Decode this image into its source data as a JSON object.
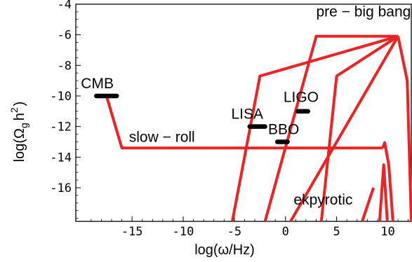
{
  "chart_data": {
    "type": "line",
    "title": "",
    "xlabel": "log(ω/Hz)",
    "ylabel_main": "log(Ω",
    "ylabel_sub": "g",
    "ylabel_rest": "h",
    "ylabel_sup": "2",
    "ylabel_close": ")",
    "xlim": [
      -20.5,
      12.3
    ],
    "ylim": [
      -18.2,
      -4.0
    ],
    "x_ticks": [
      -15,
      -10,
      -5,
      0,
      5,
      10
    ],
    "x_tick_labels": [
      "-15",
      "-10",
      "-5",
      "0",
      "5",
      "10"
    ],
    "y_ticks": [
      -4,
      -6,
      -8,
      -10,
      -12,
      -14,
      -16
    ],
    "y_tick_labels": [
      "-4",
      "-6",
      "-8",
      "-10",
      "-12",
      "-14",
      "-16"
    ],
    "grid": false,
    "line_color": "#ee2222",
    "marker_color": "#000000",
    "series": [
      {
        "name": "slow-roll",
        "x": [
          -17.5,
          -16,
          9.5
        ],
        "y": [
          -10.0,
          -13.4,
          -13.4
        ]
      },
      {
        "x": [
          9.5,
          9.7,
          10.1,
          10.5
        ],
        "y": [
          -13.4,
          -13.05,
          -14.5,
          -18.2
        ]
      },
      {
        "x": [
          9.2,
          9.6,
          9.95
        ],
        "y": [
          -18.2,
          -14.5,
          -18.2
        ]
      },
      {
        "name": "pre-big bang",
        "x": [
          -5.2,
          -2.5,
          11.0
        ],
        "y": [
          -18.2,
          -8.7,
          -6.1
        ]
      },
      {
        "x": [
          -2.0,
          3.0,
          11.0
        ],
        "y": [
          -18.2,
          -6.1,
          -6.1
        ]
      },
      {
        "x": [
          0.5,
          11.0
        ],
        "y": [
          -18.2,
          -6.1
        ]
      },
      {
        "x": [
          3.5,
          5.0,
          11.0
        ],
        "y": [
          -18.2,
          -8.7,
          -6.1
        ]
      },
      {
        "x": [
          11.0,
          11.9,
          12.3
        ],
        "y": [
          -6.1,
          -9.0,
          -18.2
        ]
      },
      {
        "name": "ekpyrotic",
        "x": [
          7.5,
          8.6
        ],
        "y": [
          -18.2,
          -16.0
        ]
      }
    ],
    "markers": [
      {
        "name": "CMB",
        "x": [
          -18.5,
          -16.5
        ],
        "y": -10.0
      },
      {
        "name": "LISA",
        "x": [
          -3.5,
          -2.0
        ],
        "y": -12.0
      },
      {
        "name": "BBO",
        "x": [
          -0.8,
          0.2
        ],
        "y": -13.0
      },
      {
        "name": "LIGO",
        "x": [
          1.2,
          2.2
        ],
        "y": -11.0
      }
    ],
    "annotations": [
      {
        "text": "pre − big bang",
        "x": 3.0,
        "y": -4.8
      },
      {
        "text": "CMB",
        "x": -20.0,
        "y": -9.5
      },
      {
        "text": "LIGO",
        "x": -0.2,
        "y": -10.4
      },
      {
        "text": "LISA",
        "x": -5.3,
        "y": -11.5
      },
      {
        "text": "BBO",
        "x": -1.7,
        "y": -12.5
      },
      {
        "text": "slow − roll",
        "x": -15.3,
        "y": -13.0
      },
      {
        "text": "ekpyrotic",
        "x": 0.8,
        "y": -17.1
      }
    ]
  }
}
